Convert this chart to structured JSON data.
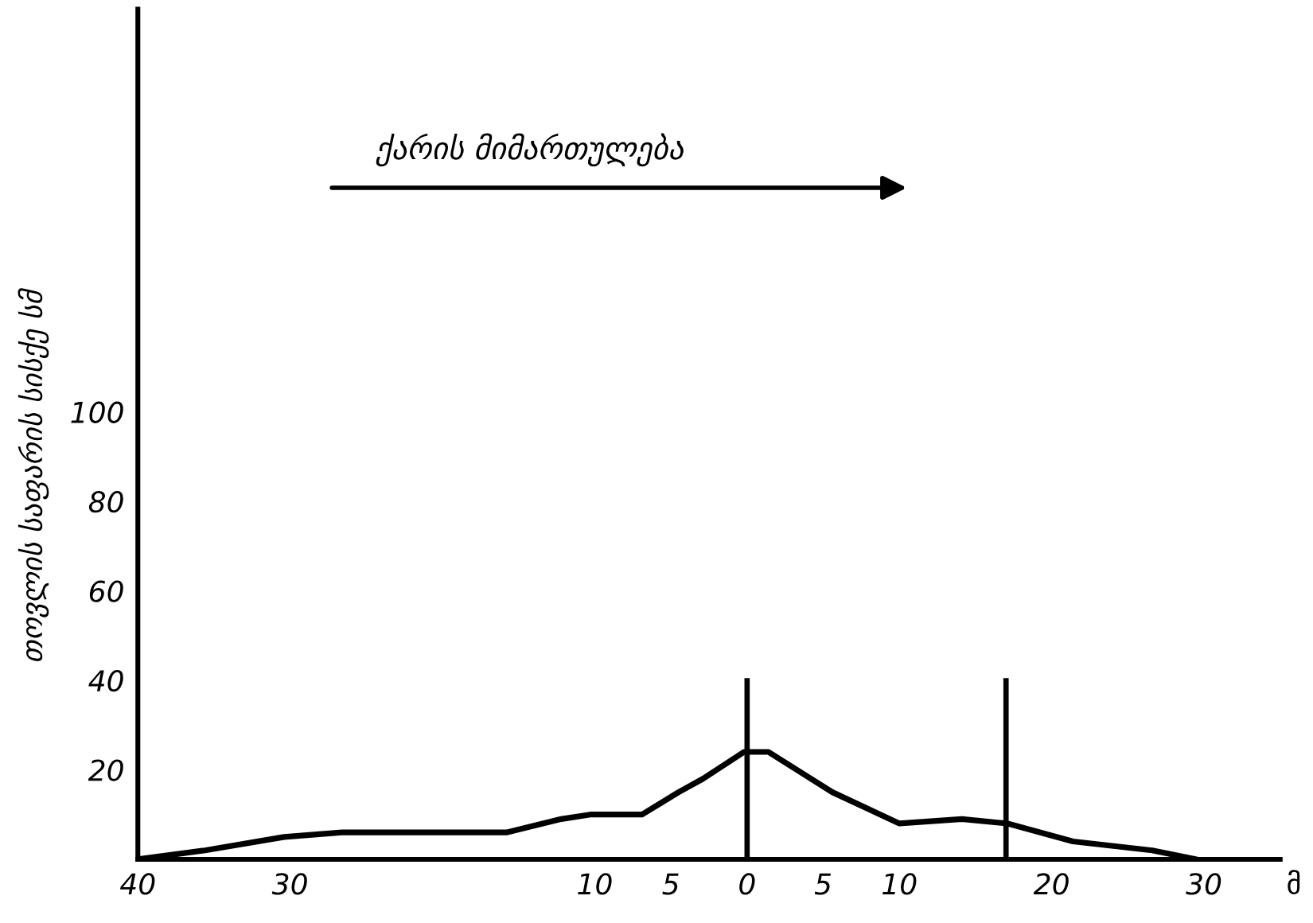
{
  "chart_data": {
    "type": "line",
    "ylabel": "თოვლის საფარის სისქე სმ",
    "xlabel": "მ",
    "annotations": [
      "ქარის მიმართულება"
    ],
    "x": [
      -40,
      -35.6,
      -30.4,
      -26.6,
      -20.3,
      -15.8,
      -12.2,
      -10.3,
      -6.9,
      -4.5,
      -2.9,
      -0.2,
      1.4,
      5.6,
      10,
      14.1,
      17.1,
      21.4,
      26.6,
      29.5
    ],
    "series": [
      {
        "color": "#000000",
        "values": [
          0,
          2,
          5,
          6,
          6,
          6,
          9,
          10,
          10,
          15,
          18,
          24,
          24,
          15,
          8,
          9,
          8,
          4,
          2,
          0
        ]
      }
    ],
    "xlim": [
      -40,
      35
    ],
    "ylim": [
      0,
      190
    ],
    "xticks": [
      {
        "value": -40,
        "label": "40"
      },
      {
        "value": -30,
        "label": "30"
      },
      {
        "value": -10,
        "label": "10"
      },
      {
        "value": -5,
        "label": "5"
      },
      0,
      5,
      10,
      20,
      30
    ],
    "yticks": [
      20,
      40,
      60,
      80,
      100
    ],
    "ref_lines": [
      {
        "axis": "x",
        "value": 0,
        "color": "#000000"
      },
      {
        "axis": "x",
        "value": 17,
        "color": "#000000"
      }
    ],
    "grid": false,
    "legend": false,
    "marker": "none",
    "line_style": "solid"
  }
}
